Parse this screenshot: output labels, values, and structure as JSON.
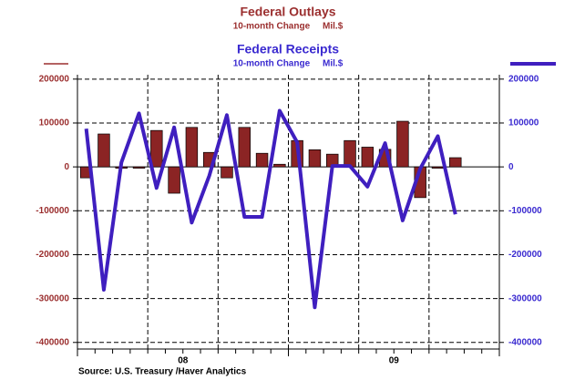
{
  "chart_data": {
    "type": "bar_line",
    "categories": [
      null,
      null,
      null,
      null,
      null,
      null,
      null,
      null,
      null,
      null,
      null,
      null,
      null,
      null,
      null,
      null,
      null,
      null,
      null,
      null,
      null,
      null,
      null,
      null
    ],
    "year_labels": [
      "08",
      "09"
    ],
    "series": [
      {
        "name": "Federal Outlays",
        "subtitle": "10-month Change     Mil.$",
        "type": "bar",
        "axis": "y",
        "color": "#8b2424",
        "values": [
          -25000,
          75000,
          -3000,
          -3000,
          83000,
          -60000,
          90000,
          33000,
          -25000,
          90000,
          31000,
          6000,
          60000,
          39000,
          29000,
          60000,
          45000,
          40000,
          104000,
          -70000,
          -3000,
          21000,
          null,
          null
        ]
      },
      {
        "name": "Federal Receipts",
        "subtitle": "10-month Change     Mil.$",
        "type": "line",
        "axis": "y2",
        "color": "#3f1fbf",
        "values": [
          87000,
          -280000,
          10000,
          122000,
          -48000,
          90000,
          -127000,
          -20000,
          118000,
          -114000,
          -114000,
          128000,
          56000,
          -320000,
          2000,
          2000,
          -45000,
          54000,
          -122000,
          -4000,
          70000,
          -108000,
          null,
          null
        ]
      }
    ],
    "ylim": [
      -415000,
      210000
    ],
    "yticks": [
      -400000,
      -300000,
      -200000,
      -100000,
      0,
      100000,
      200000
    ],
    "y2lim": [
      -415000,
      210000
    ],
    "y2ticks": [
      -400000,
      -300000,
      -200000,
      -100000,
      0,
      100000,
      200000
    ],
    "grid": true,
    "source": "Source:  U.S. Treasury /Haver Analytics"
  }
}
